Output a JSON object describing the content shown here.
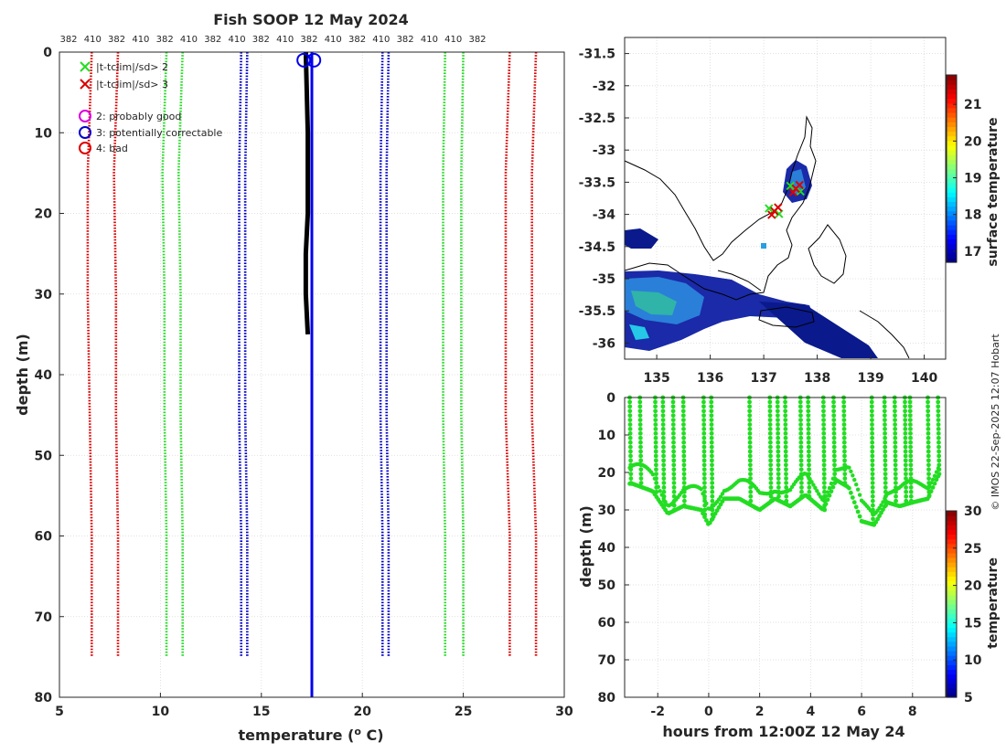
{
  "chart_data": [
    {
      "id": "profile",
      "type": "line",
      "title": "Fish SOOP 12 May 2024",
      "xlabel": "temperature (",
      "xlabel_sup": "o",
      "xlabel_tail": " C)",
      "ylabel": "depth (m)",
      "xlim": [
        5,
        30
      ],
      "ylim": [
        0,
        80
      ],
      "x_ticks": [
        5,
        10,
        15,
        20,
        25,
        30
      ],
      "y_ticks": [
        0,
        10,
        20,
        30,
        40,
        50,
        60,
        70,
        80
      ],
      "top_labels": [
        "382",
        "410",
        "382",
        "410",
        "382",
        "410",
        "382",
        "410",
        "382",
        "410",
        "382",
        "410",
        "382",
        "410",
        "382",
        "410",
        "410",
        "382"
      ],
      "limit_lines": [
        {
          "color": "#dd0000",
          "temps": [
            6.6,
            6.4,
            6.4,
            6.5,
            6.6,
            6.6
          ]
        },
        {
          "color": "#dd0000",
          "temps": [
            7.9,
            7.7,
            7.8,
            7.8,
            7.9,
            7.9
          ]
        },
        {
          "color": "#22dd22",
          "temps": [
            10.3,
            10.1,
            10.2,
            10.2,
            10.3,
            10.3
          ]
        },
        {
          "color": "#22dd22",
          "temps": [
            11.1,
            10.9,
            11.0,
            11.0,
            11.1,
            11.1
          ]
        },
        {
          "color": "#0000cc",
          "temps": [
            14.0,
            13.9,
            13.9,
            13.9,
            14.0,
            14.0
          ]
        },
        {
          "color": "#0000cc",
          "temps": [
            14.3,
            14.2,
            14.2,
            14.2,
            14.3,
            14.3
          ]
        },
        {
          "color": "#0000cc",
          "temps": [
            21.0,
            20.9,
            20.9,
            20.9,
            21.0,
            21.0
          ]
        },
        {
          "color": "#0000cc",
          "temps": [
            21.3,
            21.2,
            21.2,
            21.2,
            21.3,
            21.3
          ]
        },
        {
          "color": "#22dd22",
          "temps": [
            24.1,
            24.0,
            24.0,
            24.0,
            24.1,
            24.1
          ]
        },
        {
          "color": "#22dd22",
          "temps": [
            25.0,
            24.9,
            24.9,
            24.9,
            25.0,
            25.0
          ]
        },
        {
          "color": "#dd0000",
          "temps": [
            27.3,
            27.1,
            27.1,
            27.1,
            27.3,
            27.3
          ]
        },
        {
          "color": "#dd0000",
          "temps": [
            28.6,
            28.4,
            28.4,
            28.4,
            28.6,
            28.6
          ]
        }
      ],
      "limit_depths": [
        0,
        15,
        30,
        45,
        60,
        75
      ],
      "profile_black": {
        "temps": [
          17.2,
          17.3,
          17.3,
          17.2,
          17.2,
          17.3
        ],
        "depths": [
          0,
          10,
          20,
          25,
          30,
          35
        ]
      },
      "profile_blue": {
        "temps": [
          17.5,
          17.5,
          17.5,
          17.5
        ],
        "depths": [
          0,
          25,
          50,
          80
        ]
      },
      "legend": [
        {
          "marker": "x",
          "color": "#22dd22",
          "label": "|t-tclim|/sd> 2"
        },
        {
          "marker": "x",
          "color": "#dd0000",
          "label": "|t-tclim|/sd> 3"
        },
        {
          "marker": "o",
          "color": "#dd00dd",
          "label": "2: probably good"
        },
        {
          "marker": "o",
          "color": "#0000cc",
          "label": "3: potentially correctable"
        },
        {
          "marker": "o",
          "color": "#dd0000",
          "label": "4: bad"
        }
      ]
    },
    {
      "id": "map",
      "type": "heatmap",
      "xlim": [
        134.4,
        140.4
      ],
      "ylim": [
        -36.25,
        -31.25
      ],
      "x_ticks": [
        135,
        136,
        137,
        138,
        139,
        140
      ],
      "y_ticks": [
        -31.5,
        -32,
        -32.5,
        -33,
        -33.5,
        -34,
        -34.5,
        -35,
        -35.5,
        -36
      ],
      "colorbar_label": "surface temperature",
      "colorbar_ticks": [
        17,
        18,
        19,
        20,
        21
      ],
      "colorbar_range": [
        16.7,
        21.8
      ],
      "markers": [
        {
          "lon": 137.6,
          "lat": -33.6
        },
        {
          "lon": 137.2,
          "lat": -33.95
        }
      ]
    },
    {
      "id": "timeseries",
      "type": "scatter",
      "xlabel": "hours from 12:00Z 12 May 24",
      "ylabel": "depth (m)",
      "xlim": [
        -3.3,
        9.3
      ],
      "ylim": [
        0,
        80
      ],
      "x_ticks": [
        -2,
        0,
        2,
        4,
        6,
        8
      ],
      "y_ticks": [
        0,
        10,
        20,
        30,
        40,
        50,
        60,
        70,
        80
      ],
      "colorbar_label": "temperature",
      "colorbar_ticks": [
        5,
        10,
        15,
        20,
        25,
        30
      ],
      "colorbar_range": [
        5,
        30
      ],
      "point_color": "#22dd22",
      "dive_times": [
        -3.1,
        -2.7,
        -2.1,
        -1.8,
        -1.4,
        -1.0,
        -0.2,
        0.1,
        1.6,
        2.4,
        2.7,
        3.0,
        3.6,
        3.9,
        4.5,
        4.9,
        5.3,
        6.4,
        6.9,
        7.3,
        7.7,
        7.9,
        8.6,
        9.0
      ],
      "bottom_track": {
        "times": [
          -3.0,
          -2.2,
          -1.6,
          -1.0,
          -0.3,
          0.0,
          0.6,
          1.2,
          2.0,
          2.6,
          3.2,
          3.8,
          4.5,
          5.0,
          5.5,
          6.0,
          6.5,
          7.0,
          7.5,
          8.0,
          8.6,
          9.0
        ],
        "depths": [
          23,
          25,
          31,
          29,
          30,
          34,
          27,
          27,
          30,
          27,
          29,
          26,
          30,
          22,
          24,
          33,
          34,
          28,
          29,
          28,
          27,
          21
        ]
      }
    }
  ],
  "credit": "© IMOS 22-Sep-2025 12:07 Hobart"
}
